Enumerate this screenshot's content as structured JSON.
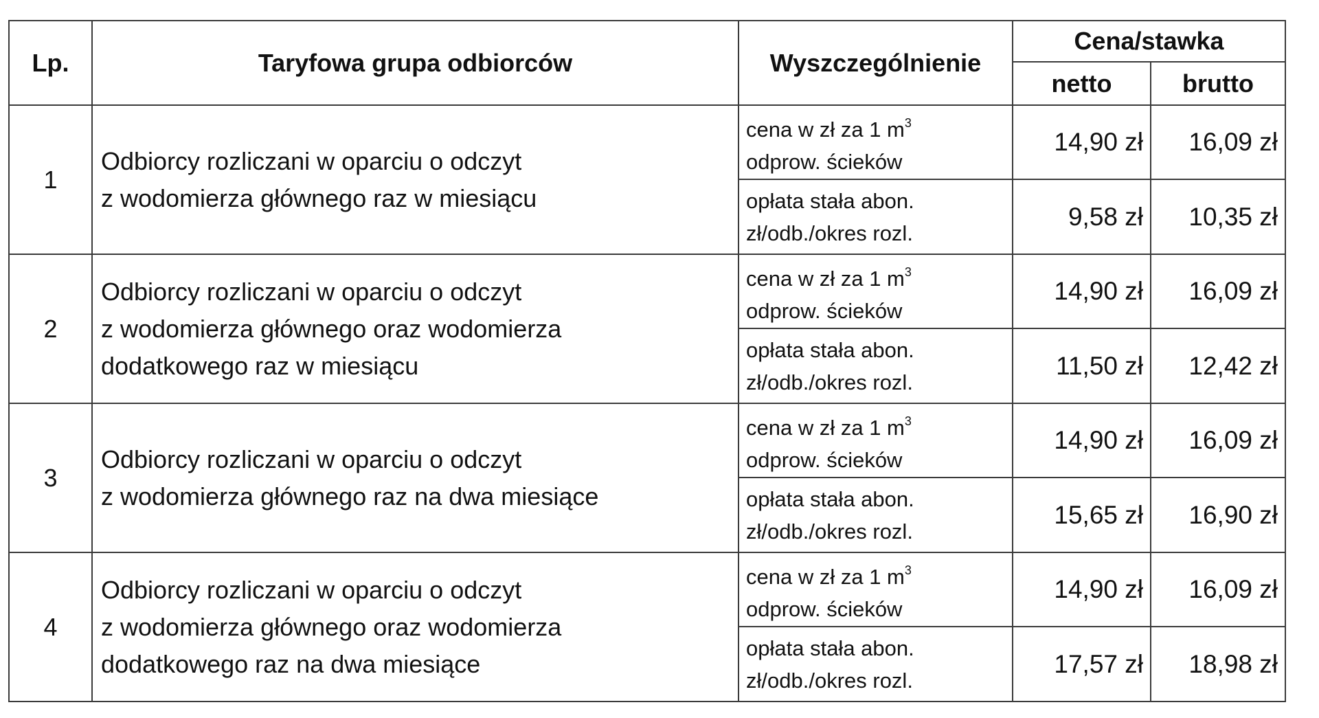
{
  "header": {
    "lp": "Lp.",
    "group": "Taryfowa grupa odbiorców",
    "spec": "Wyszczególnienie",
    "price": "Cena/stawka",
    "net": "netto",
    "gross": "brutto"
  },
  "labels": {
    "price_line1": "cena w zł za 1 m",
    "price_sup": "3",
    "price_line2": "odprow. ścieków",
    "fee_line1": "opłata stała abon.",
    "fee_line2": "zł/odb./okres rozl."
  },
  "rows": [
    {
      "lp": "1",
      "group_lines": [
        "Odbiorcy rozliczani w oparciu o odczyt",
        "z wodomierza głównego raz w miesiącu",
        ""
      ],
      "price_net": "14,90 zł",
      "price_gross": "16,09 zł",
      "fee_net": "9,58 zł",
      "fee_gross": "10,35 zł"
    },
    {
      "lp": "2",
      "group_lines": [
        "Odbiorcy rozliczani w oparciu o odczyt",
        "z wodomierza głównego oraz wodomierza",
        "dodatkowego raz w miesiącu"
      ],
      "price_net": "14,90 zł",
      "price_gross": "16,09 zł",
      "fee_net": "11,50 zł",
      "fee_gross": "12,42 zł"
    },
    {
      "lp": "3",
      "group_lines": [
        "Odbiorcy rozliczani w oparciu o odczyt",
        "z wodomierza głównego raz na dwa miesiące",
        ""
      ],
      "price_net": "14,90 zł",
      "price_gross": "16,09 zł",
      "fee_net": "15,65 zł",
      "fee_gross": "16,90 zł"
    },
    {
      "lp": "4",
      "group_lines": [
        "Odbiorcy rozliczani w oparciu o odczyt",
        "z wodomierza głównego oraz wodomierza",
        "dodatkowego raz na dwa miesiące"
      ],
      "price_net": "14,90 zł",
      "price_gross": "16,09 zł",
      "fee_net": "17,57 zł",
      "fee_gross": "18,98 zł"
    }
  ]
}
